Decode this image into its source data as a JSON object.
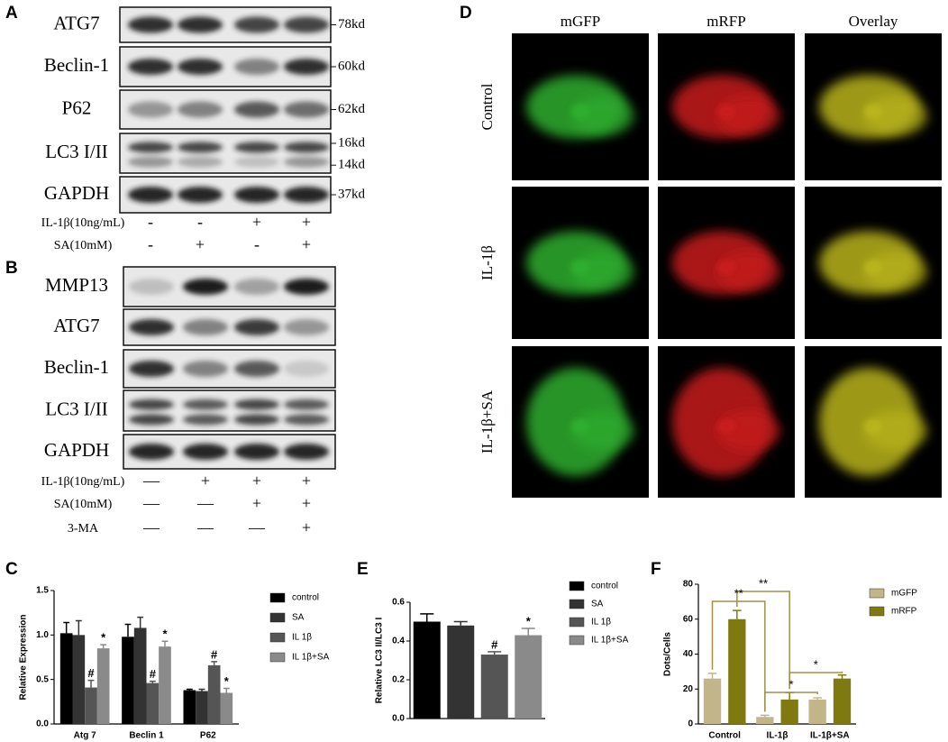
{
  "panels": {
    "a": "A",
    "b": "B",
    "c": "C",
    "d": "D",
    "e": "E",
    "f": "F"
  },
  "blot_a": {
    "rows": [
      {
        "label": "ATG7",
        "sizes": [
          "78kd"
        ]
      },
      {
        "label": "Beclin-1",
        "sizes": [
          "60kd"
        ]
      },
      {
        "label": "P62",
        "sizes": [
          "62kd"
        ]
      },
      {
        "label": "LC3 I/II",
        "sizes": [
          "16kd",
          "14kd"
        ]
      },
      {
        "label": "GAPDH",
        "sizes": [
          "37kd"
        ]
      }
    ],
    "treatments": [
      {
        "label": "IL-1β(10ng/mL)",
        "signs": [
          "-",
          "-",
          "+",
          "+"
        ]
      },
      {
        "label": "SA(10mM)",
        "signs": [
          "-",
          "+",
          "-",
          "+"
        ]
      }
    ]
  },
  "blot_b": {
    "rows": [
      {
        "label": "MMP13"
      },
      {
        "label": "ATG7"
      },
      {
        "label": "Beclin-1"
      },
      {
        "label": "LC3 I/II"
      },
      {
        "label": "GAPDH"
      }
    ],
    "treatments": [
      {
        "label": "IL-1β(10ng/mL)",
        "signs": [
          "—",
          "+",
          "+",
          "+"
        ]
      },
      {
        "label": "SA(10mM)",
        "signs": [
          "—",
          "—",
          "+",
          "+"
        ]
      },
      {
        "label": "3-MA",
        "signs": [
          "—",
          "—",
          "—",
          "+"
        ]
      }
    ]
  },
  "microscopy": {
    "columns": [
      "mGFP",
      "mRFP",
      "Overlay"
    ],
    "rows": [
      "Control",
      "IL-1β",
      "IL-1β+SA"
    ]
  },
  "chart_data": [
    {
      "type": "bar",
      "y_label": "Relative Expression",
      "categories": [
        "Atg 7",
        "Beclin 1",
        "P62"
      ],
      "series": [
        {
          "name": "control",
          "color": "#000000",
          "values": [
            1.02,
            0.98,
            0.38
          ],
          "errors": [
            0.12,
            0.14,
            0.01
          ]
        },
        {
          "name": "SA",
          "color": "#333333",
          "values": [
            1.0,
            1.08,
            0.37
          ],
          "errors": [
            0.16,
            0.12,
            0.02
          ]
        },
        {
          "name": "IL 1β",
          "color": "#555555",
          "values": [
            0.41,
            0.46,
            0.66
          ],
          "errors": [
            0.08,
            0.02,
            0.04
          ],
          "markers": [
            "#",
            "#",
            "#"
          ]
        },
        {
          "name": "IL 1β+SA",
          "color": "#8a8a8a",
          "values": [
            0.85,
            0.87,
            0.35
          ],
          "errors": [
            0.04,
            0.06,
            0.05
          ],
          "markers": [
            "*",
            "*",
            "*"
          ]
        }
      ],
      "ylim": [
        0,
        1.5
      ],
      "yticks": [
        {
          "value": 0,
          "label": "0.0"
        },
        0.5,
        {
          "value": 1,
          "label": "1.0"
        },
        1.5
      ]
    },
    {
      "type": "bar",
      "y_label": "Relative LC3 II/LC3 I",
      "categories": [
        "control",
        "SA",
        "IL 1β",
        "IL 1β+SA"
      ],
      "colors": [
        "#000000",
        "#333333",
        "#555555",
        "#8a8a8a"
      ],
      "values": [
        0.5,
        0.48,
        0.33,
        0.43
      ],
      "errors": [
        0.04,
        0.02,
        0.015,
        0.035
      ],
      "markers": [
        null,
        null,
        "#",
        "*"
      ],
      "ylim": [
        0,
        0.6
      ],
      "yticks": [
        {
          "value": 0,
          "label": "0.0"
        },
        0.2,
        0.4,
        0.6
      ]
    },
    {
      "type": "bar",
      "y_label": "Dots/Cells",
      "categories": [
        "Control",
        "IL-1β",
        "IL-1β+SA"
      ],
      "series": [
        {
          "name": "mGFP",
          "color": "#c2b58a",
          "values": [
            26,
            4,
            14
          ],
          "errors": [
            3,
            1,
            1
          ]
        },
        {
          "name": "mRFP",
          "color": "#7f7a10",
          "values": [
            60,
            14,
            26
          ],
          "errors": [
            5,
            4,
            2
          ]
        }
      ],
      "brackets": [
        "**",
        "**",
        "*",
        "*"
      ],
      "ylim": [
        0,
        80
      ],
      "yticks": [
        0,
        20,
        40,
        60,
        80
      ]
    }
  ]
}
